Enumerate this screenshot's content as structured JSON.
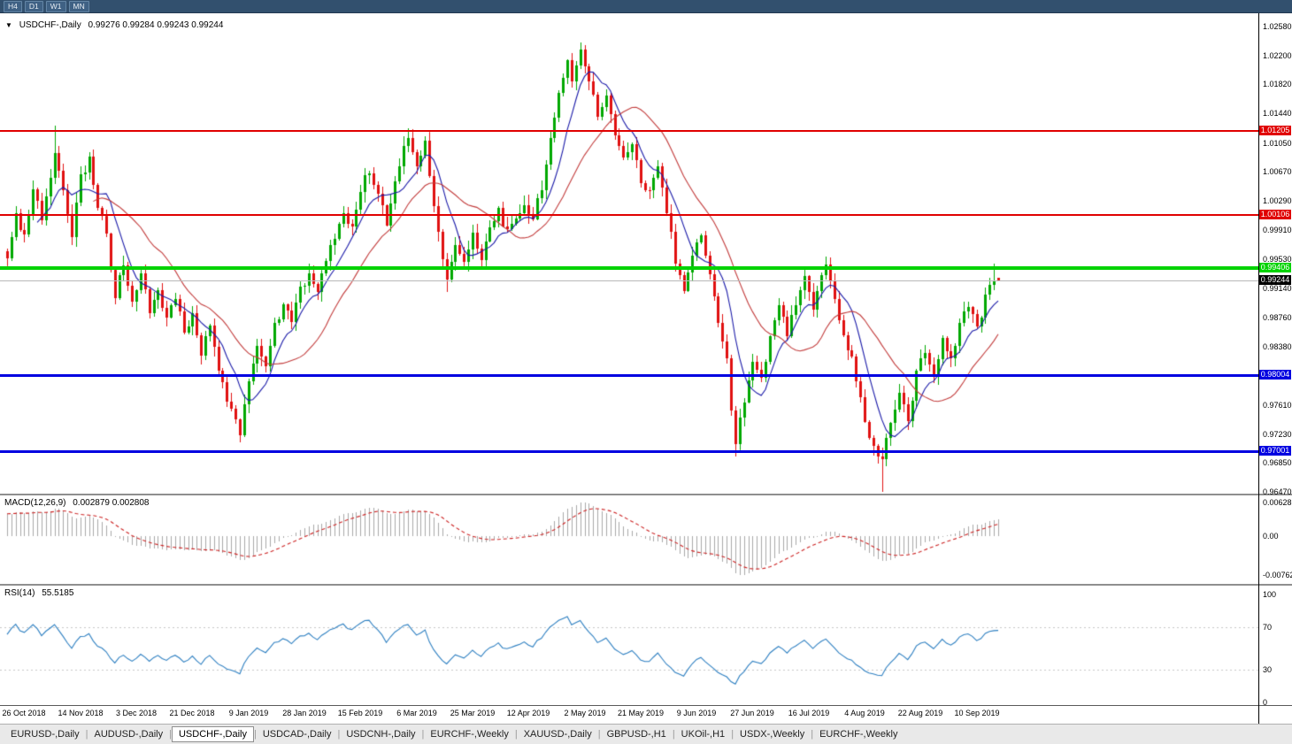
{
  "topbar": {
    "timeframes": [
      "H4",
      "D1",
      "W1",
      "MN"
    ]
  },
  "chart": {
    "dropdown_icon": "▼",
    "title": "USDCHF-,Daily",
    "ohlc": "0.99276 0.99284 0.99243 0.99244"
  },
  "price_axis": {
    "labels": [
      "1.02580",
      "1.02200",
      "1.01820",
      "1.01440",
      "1.01050",
      "1.00670",
      "1.00290",
      "0.99910",
      "0.99530",
      "0.99140",
      "0.98760",
      "0.98380",
      "0.97610",
      "0.97230",
      "0.96850",
      "0.96470"
    ]
  },
  "date_axis": {
    "labels": [
      "26 Oct 2018",
      "14 Nov 2018",
      "3 Dec 2018",
      "21 Dec 2018",
      "9 Jan 2019",
      "28 Jan 2019",
      "15 Feb 2019",
      "6 Mar 2019",
      "25 Mar 2019",
      "12 Apr 2019",
      "2 May 2019",
      "21 May 2019",
      "9 Jun 2019",
      "27 Jun 2019",
      "16 Jul 2019",
      "4 Aug 2019",
      "22 Aug 2019",
      "10 Sep 2019"
    ]
  },
  "macd_panel": {
    "title": "MACD(12,26,9)",
    "values": "0.002879 0.002808",
    "axis_labels": [
      "0.006286",
      "0.00",
      "-0.00762"
    ]
  },
  "rsi_panel": {
    "title": "RSI(14)",
    "value": "55.5185",
    "axis_labels": [
      "100",
      "70",
      "30",
      "0"
    ]
  },
  "tabbar": {
    "active_index": 2,
    "tabs": [
      "EURUSD-,Daily",
      "AUDUSD-,Daily",
      "USDCHF-,Daily",
      "USDCAD-,Daily",
      "USDCNH-,Daily",
      "EURCHF-,Weekly",
      "XAUUSD-,Daily",
      "GBPUSD-,H1",
      "UKOil-,H1",
      "USDX-,Weekly",
      "EURCHF-,Weekly"
    ]
  },
  "colors": {
    "bull": "#00a800",
    "bear": "#e01010",
    "ma_fast": "#1a1aa8",
    "ma_slow": "#c23b3b",
    "macd_hist": "#a9a9a9",
    "macd_signal": "#cc2222",
    "rsi_line": "#2d7fc1",
    "current_line": "#b8b8b8"
  },
  "chart_data": {
    "type": "candlestick",
    "symbol": "USDCHF",
    "timeframe": "Daily",
    "current": {
      "open": 0.99276,
      "high": 0.99284,
      "low": 0.99243,
      "close": 0.99244
    },
    "visible_price_range": [
      0.9647,
      1.0258
    ],
    "n_bars": 231,
    "levels": [
      {
        "name": "resistance-line-1",
        "price": 1.01205,
        "label": "1.01205",
        "color": "#e00000",
        "width": 2
      },
      {
        "name": "resistance-line-2",
        "price": 1.00106,
        "label": "1.00106",
        "color": "#e00000",
        "width": 2
      },
      {
        "name": "support-line-green",
        "price": 0.99406,
        "label": "0.99406",
        "color": "#00d300",
        "width": 4
      },
      {
        "name": "current-price-line",
        "price": 0.99244,
        "label": "0.99244",
        "color": "#b8b8b8",
        "tag_color": "#000000",
        "width": 1
      },
      {
        "name": "support-line-blue-1",
        "price": 0.98004,
        "label": "0.98004",
        "color": "#0000e0",
        "width": 3
      },
      {
        "name": "support-line-blue-2",
        "price": 0.97001,
        "label": "0.97001",
        "color": "#0000e0",
        "width": 3
      }
    ],
    "close_waypoints": [
      [
        0,
        0.9958
      ],
      [
        2,
        1.0008
      ],
      [
        4,
        0.9984
      ],
      [
        6,
        1.0042
      ],
      [
        8,
        1.0008
      ],
      [
        10,
        1.0062
      ],
      [
        11,
        1.0088
      ],
      [
        13,
        1.0038
      ],
      [
        15,
        0.9984
      ],
      [
        17,
        1.0058
      ],
      [
        19,
        1.0082
      ],
      [
        21,
        1.0022
      ],
      [
        23,
        0.9986
      ],
      [
        25,
        0.9906
      ],
      [
        27,
        0.9944
      ],
      [
        29,
        0.9896
      ],
      [
        31,
        0.993
      ],
      [
        33,
        0.9882
      ],
      [
        35,
        0.9916
      ],
      [
        37,
        0.9872
      ],
      [
        39,
        0.9904
      ],
      [
        41,
        0.9856
      ],
      [
        43,
        0.9882
      ],
      [
        45,
        0.9832
      ],
      [
        47,
        0.986
      ],
      [
        49,
        0.9806
      ],
      [
        51,
        0.9772
      ],
      [
        53,
        0.9744
      ],
      [
        54,
        0.9722
      ],
      [
        56,
        0.9796
      ],
      [
        58,
        0.9836
      ],
      [
        60,
        0.9816
      ],
      [
        62,
        0.9864
      ],
      [
        64,
        0.9894
      ],
      [
        66,
        0.9876
      ],
      [
        68,
        0.9914
      ],
      [
        70,
        0.9934
      ],
      [
        72,
        0.9906
      ],
      [
        74,
        0.995
      ],
      [
        76,
        0.9984
      ],
      [
        78,
        1.0014
      ],
      [
        80,
        0.9994
      ],
      [
        82,
        1.0044
      ],
      [
        84,
        1.0068
      ],
      [
        86,
        1.0034
      ],
      [
        88,
        1.0002
      ],
      [
        90,
        1.0058
      ],
      [
        92,
        1.0098
      ],
      [
        93,
        1.0112
      ],
      [
        95,
        1.0068
      ],
      [
        97,
        1.0102
      ],
      [
        99,
        1.0028
      ],
      [
        101,
        0.9958
      ],
      [
        102,
        0.9922
      ],
      [
        104,
        0.9972
      ],
      [
        106,
        0.9944
      ],
      [
        108,
        0.9984
      ],
      [
        110,
        0.9954
      ],
      [
        112,
        0.9992
      ],
      [
        114,
        1.0014
      ],
      [
        116,
        0.9986
      ],
      [
        118,
        1.0004
      ],
      [
        120,
        1.0024
      ],
      [
        122,
        1.0008
      ],
      [
        124,
        1.0048
      ],
      [
        126,
        1.0108
      ],
      [
        128,
        1.0168
      ],
      [
        130,
        1.0212
      ],
      [
        131,
        1.0188
      ],
      [
        133,
        1.0228
      ],
      [
        135,
        1.0184
      ],
      [
        137,
        1.0144
      ],
      [
        139,
        1.0172
      ],
      [
        141,
        1.0118
      ],
      [
        143,
        1.0084
      ],
      [
        145,
        1.0108
      ],
      [
        147,
        1.0058
      ],
      [
        149,
        1.0038
      ],
      [
        151,
        1.0068
      ],
      [
        153,
        1.0018
      ],
      [
        155,
        0.9948
      ],
      [
        157,
        0.9914
      ],
      [
        159,
        0.9958
      ],
      [
        161,
        0.9988
      ],
      [
        163,
        0.9938
      ],
      [
        165,
        0.9868
      ],
      [
        167,
        0.9816
      ],
      [
        168,
        0.9758
      ],
      [
        169,
        0.9712
      ],
      [
        171,
        0.9768
      ],
      [
        173,
        0.9818
      ],
      [
        175,
        0.9798
      ],
      [
        177,
        0.9848
      ],
      [
        179,
        0.9888
      ],
      [
        181,
        0.9858
      ],
      [
        183,
        0.9898
      ],
      [
        185,
        0.9928
      ],
      [
        187,
        0.9888
      ],
      [
        190,
        0.9946
      ],
      [
        192,
        0.9898
      ],
      [
        194,
        0.9858
      ],
      [
        196,
        0.9818
      ],
      [
        198,
        0.9768
      ],
      [
        200,
        0.9722
      ],
      [
        201,
        0.9702
      ],
      [
        203,
        0.9688
      ],
      [
        205,
        0.9742
      ],
      [
        207,
        0.9776
      ],
      [
        209,
        0.9742
      ],
      [
        211,
        0.98
      ],
      [
        213,
        0.9832
      ],
      [
        215,
        0.9796
      ],
      [
        217,
        0.9846
      ],
      [
        219,
        0.9816
      ],
      [
        221,
        0.9862
      ],
      [
        223,
        0.9892
      ],
      [
        225,
        0.9862
      ],
      [
        227,
        0.9902
      ],
      [
        229,
        0.9922
      ],
      [
        230,
        0.99244
      ]
    ],
    "extremes": [
      {
        "i": 11,
        "high": 1.0128
      },
      {
        "i": 54,
        "low": 0.9716
      },
      {
        "i": 93,
        "high": 1.0124
      },
      {
        "i": 102,
        "low": 0.9909
      },
      {
        "i": 133,
        "high": 1.0237
      },
      {
        "i": 169,
        "low": 0.9694
      },
      {
        "i": 203,
        "low": 0.9647
      },
      {
        "i": 229,
        "high": 0.9947
      }
    ],
    "moving_averages": [
      {
        "period": 8,
        "color_key": "ma_fast"
      },
      {
        "period": 21,
        "color_key": "ma_slow"
      }
    ],
    "macd": {
      "fast": 12,
      "slow": 26,
      "signal": 9,
      "value": 0.002879,
      "signal_value": 0.002808,
      "axis_max": 0.006286,
      "axis_min": -0.00762
    },
    "rsi": {
      "period": 14,
      "value": 55.5185,
      "levels": [
        30,
        70
      ]
    }
  }
}
